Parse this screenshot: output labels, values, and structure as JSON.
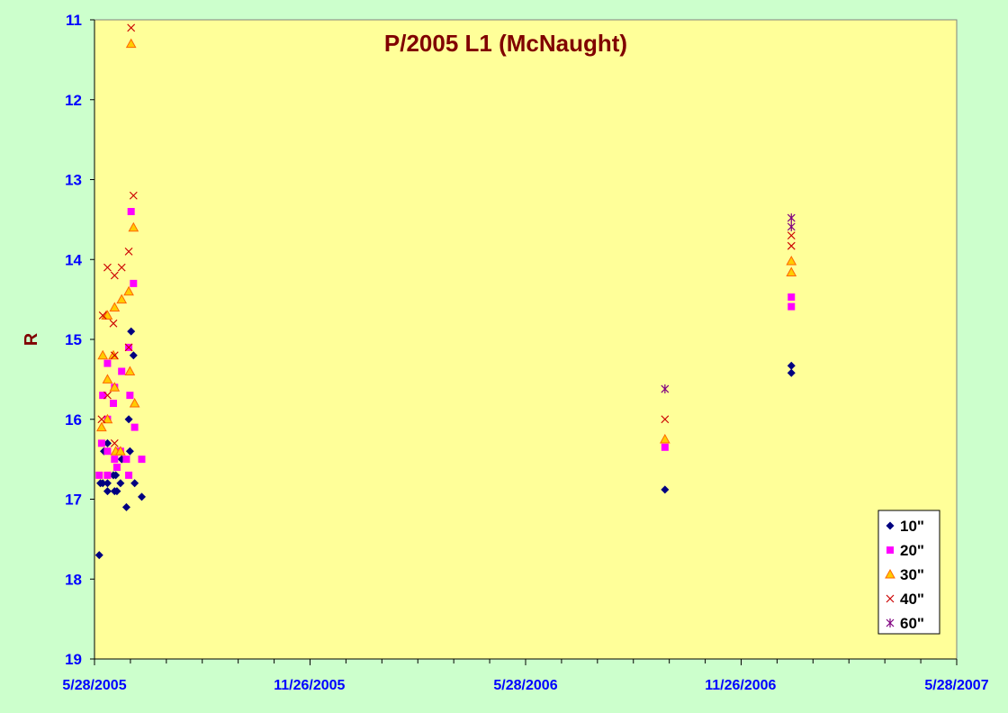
{
  "chart_data": {
    "type": "scatter",
    "title": "P/2005 L1 (McNaught)",
    "ylabel": "R",
    "xlabel": "",
    "y_inverted": true,
    "ylim": [
      11,
      19
    ],
    "yticks": [
      11,
      12,
      13,
      14,
      15,
      16,
      17,
      18,
      19
    ],
    "xlim": [
      "2005-05-28",
      "2007-05-28"
    ],
    "xticks": [
      {
        "date": "2005-05-28",
        "label": "5/28/2005"
      },
      {
        "date": "2005-11-26",
        "label": "11/26/2005"
      },
      {
        "date": "2006-05-28",
        "label": "5/28/2006"
      },
      {
        "date": "2006-11-26",
        "label": "11/26/2006"
      },
      {
        "date": "2007-05-28",
        "label": "5/28/2007"
      }
    ],
    "grid": false,
    "legend_position": "bottom-right",
    "plot_background": "#ffff99",
    "series": [
      {
        "name": "10\"",
        "marker": "diamond",
        "color": "#000080",
        "points": [
          [
            "2005-06-01",
            17.7
          ],
          [
            "2005-06-02",
            16.8
          ],
          [
            "2005-06-04",
            16.8
          ],
          [
            "2005-06-05",
            16.4
          ],
          [
            "2005-06-08",
            16.3
          ],
          [
            "2005-06-08",
            16.8
          ],
          [
            "2005-06-08",
            16.9
          ],
          [
            "2005-06-13",
            16.7
          ],
          [
            "2005-06-14",
            16.9
          ],
          [
            "2005-06-15",
            16.7
          ],
          [
            "2005-06-16",
            16.9
          ],
          [
            "2005-06-18",
            16.4
          ],
          [
            "2005-06-19",
            16.8
          ],
          [
            "2005-06-20",
            16.5
          ],
          [
            "2005-06-24",
            17.1
          ],
          [
            "2005-06-26",
            16.0
          ],
          [
            "2005-06-27",
            16.4
          ],
          [
            "2005-06-28",
            14.9
          ],
          [
            "2005-06-30",
            15.2
          ],
          [
            "2005-07-01",
            16.8
          ],
          [
            "2005-07-07",
            16.97
          ],
          [
            "2006-09-23",
            16.88
          ],
          [
            "2007-01-08",
            15.33
          ],
          [
            "2007-01-08",
            15.42
          ]
        ]
      },
      {
        "name": "20\"",
        "marker": "square",
        "color": "#ff00ff",
        "points": [
          [
            "2005-06-01",
            16.7
          ],
          [
            "2005-06-03",
            16.3
          ],
          [
            "2005-06-04",
            15.7
          ],
          [
            "2005-06-08",
            15.3
          ],
          [
            "2005-06-08",
            16.0
          ],
          [
            "2005-06-08",
            16.4
          ],
          [
            "2005-06-08",
            16.7
          ],
          [
            "2005-06-13",
            15.8
          ],
          [
            "2005-06-14",
            16.5
          ],
          [
            "2005-06-14",
            15.6
          ],
          [
            "2005-06-16",
            16.6
          ],
          [
            "2005-06-19",
            16.4
          ],
          [
            "2005-06-20",
            15.4
          ],
          [
            "2005-06-24",
            16.5
          ],
          [
            "2005-06-26",
            16.7
          ],
          [
            "2005-06-26",
            15.1
          ],
          [
            "2005-06-27",
            15.7
          ],
          [
            "2005-06-28",
            13.4
          ],
          [
            "2005-06-30",
            14.3
          ],
          [
            "2005-07-01",
            16.1
          ],
          [
            "2005-07-07",
            16.5
          ],
          [
            "2006-09-23",
            16.35
          ],
          [
            "2007-01-08",
            14.47
          ],
          [
            "2007-01-08",
            14.59
          ]
        ]
      },
      {
        "name": "30\"",
        "marker": "triangle",
        "color": "#ff6600",
        "points": [
          [
            "2005-06-03",
            16.1
          ],
          [
            "2005-06-04",
            15.2
          ],
          [
            "2005-06-07",
            14.7
          ],
          [
            "2005-06-08",
            14.7
          ],
          [
            "2005-06-08",
            15.5
          ],
          [
            "2005-06-08",
            16.0
          ],
          [
            "2005-06-13",
            15.2
          ],
          [
            "2005-06-14",
            14.6
          ],
          [
            "2005-06-14",
            15.6
          ],
          [
            "2005-06-15",
            16.4
          ],
          [
            "2005-06-19",
            16.4
          ],
          [
            "2005-06-20",
            14.5
          ],
          [
            "2005-06-26",
            14.4
          ],
          [
            "2005-06-27",
            15.4
          ],
          [
            "2005-06-28",
            11.3
          ],
          [
            "2005-06-30",
            13.6
          ],
          [
            "2005-07-01",
            15.8
          ],
          [
            "2006-09-23",
            16.25
          ],
          [
            "2007-01-08",
            14.02
          ],
          [
            "2007-01-08",
            14.16
          ]
        ]
      },
      {
        "name": "40\"",
        "marker": "x",
        "color": "#cc0000",
        "points": [
          [
            "2005-06-03",
            16.0
          ],
          [
            "2005-06-04",
            14.7
          ],
          [
            "2005-06-08",
            14.1
          ],
          [
            "2005-06-08",
            15.7
          ],
          [
            "2005-06-13",
            14.8
          ],
          [
            "2005-06-14",
            14.2
          ],
          [
            "2005-06-14",
            15.2
          ],
          [
            "2005-06-14",
            16.3
          ],
          [
            "2005-06-20",
            14.1
          ],
          [
            "2005-06-26",
            13.9
          ],
          [
            "2005-06-26",
            15.1
          ],
          [
            "2005-06-28",
            11.1
          ],
          [
            "2005-06-30",
            13.2
          ],
          [
            "2006-09-23",
            16.0
          ],
          [
            "2007-01-08",
            13.7
          ],
          [
            "2007-01-08",
            13.83
          ]
        ]
      },
      {
        "name": "60\"",
        "marker": "asterisk",
        "color": "#800080",
        "points": [
          [
            "2006-09-23",
            15.62
          ],
          [
            "2007-01-08",
            13.48
          ],
          [
            "2007-01-08",
            13.59
          ]
        ]
      }
    ]
  }
}
